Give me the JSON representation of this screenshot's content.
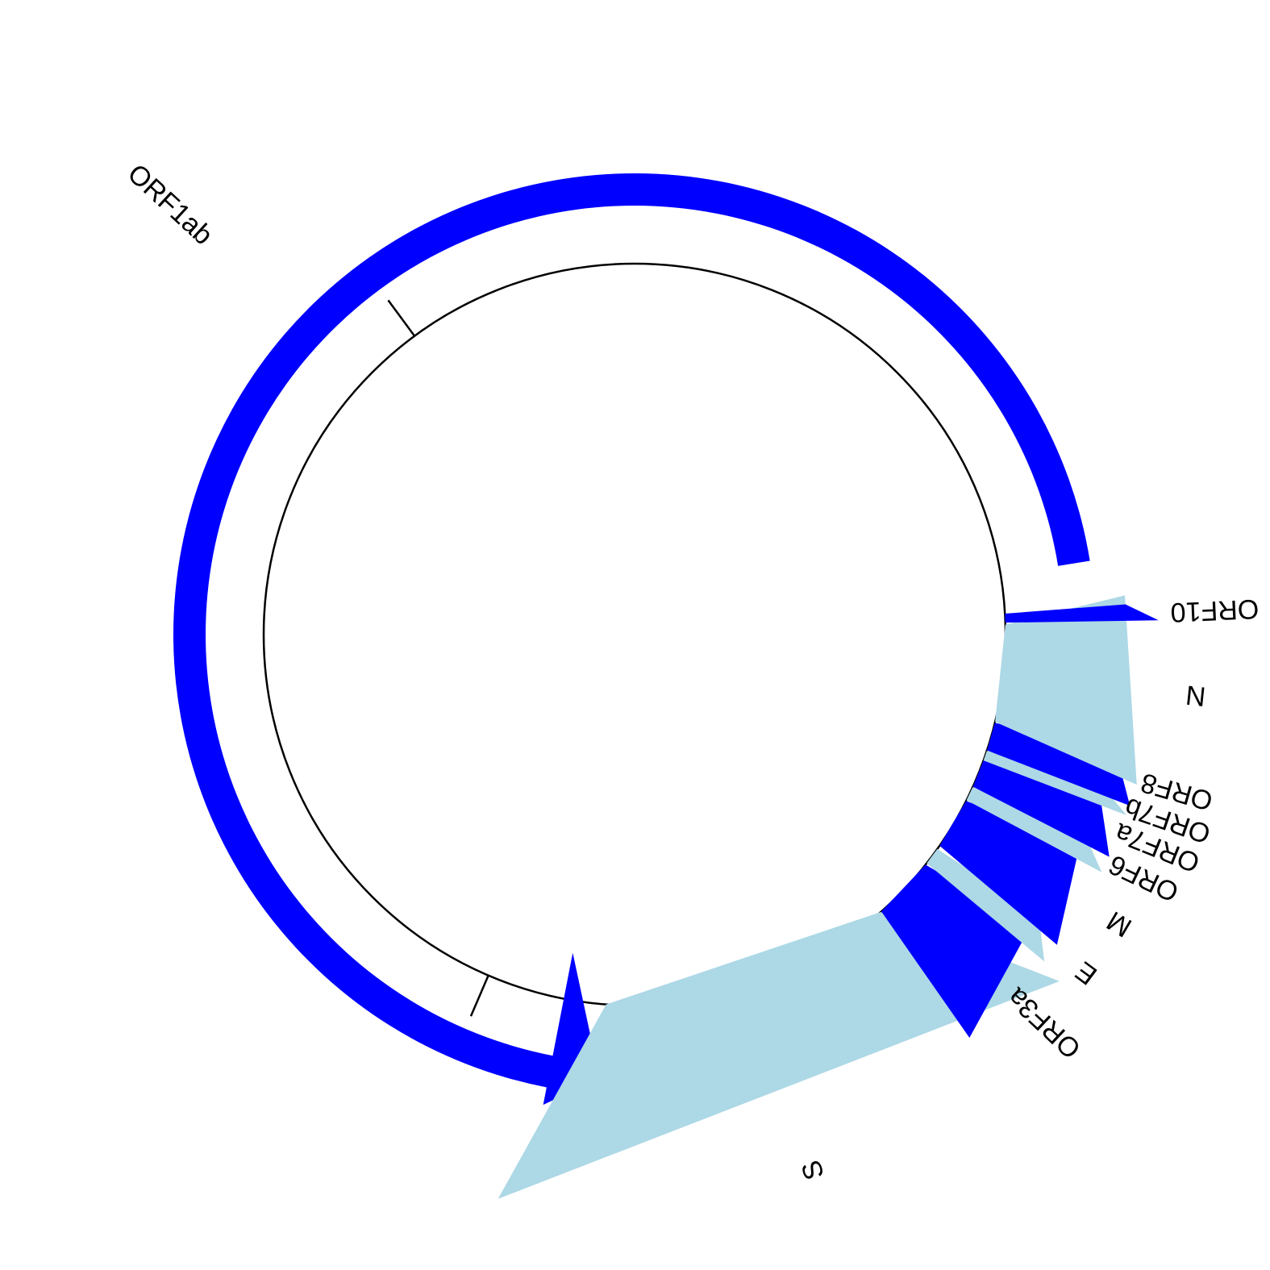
{
  "colors": {
    "dark": "#0000ff",
    "light": "#add8e6",
    "line": "#000000"
  },
  "genome": {
    "length": 29903,
    "tick_positions": [
      10000,
      20000
    ]
  },
  "genes": [
    {
      "name": "ORF1ab",
      "start": 266,
      "end": 21555,
      "color": "dark"
    },
    {
      "name": "S",
      "start": 21563,
      "end": 25384,
      "color": "light"
    },
    {
      "name": "ORF3a",
      "start": 25393,
      "end": 26220,
      "color": "dark"
    },
    {
      "name": "E",
      "start": 26245,
      "end": 26472,
      "color": "light"
    },
    {
      "name": "M",
      "start": 26523,
      "end": 27191,
      "color": "dark"
    },
    {
      "name": "ORF6",
      "start": 27202,
      "end": 27387,
      "color": "light"
    },
    {
      "name": "ORF7a",
      "start": 27394,
      "end": 27759,
      "color": "dark"
    },
    {
      "name": "ORF7b",
      "start": 27756,
      "end": 27887,
      "color": "light"
    },
    {
      "name": "ORF8",
      "start": 27894,
      "end": 28259,
      "color": "dark"
    },
    {
      "name": "N",
      "start": 28274,
      "end": 29533,
      "color": "light"
    },
    {
      "name": "ORF10",
      "start": 29558,
      "end": 29674,
      "color": "dark"
    }
  ]
}
